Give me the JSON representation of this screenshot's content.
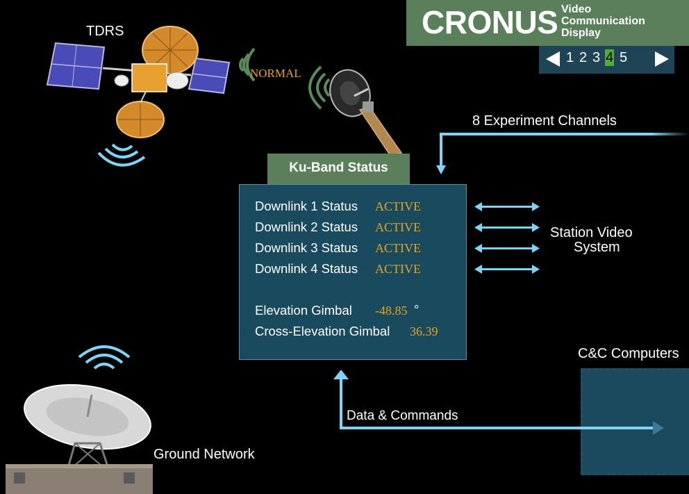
{
  "header": {
    "app_title": "CRONUS",
    "subtitle_line1": "Video",
    "subtitle_line2": "Communication",
    "subtitle_line3": "Display"
  },
  "pager": {
    "pages": [
      "1",
      "2",
      "3",
      "4",
      "5"
    ],
    "current_page": "4"
  },
  "diagram": {
    "tdrs_label": "TDRS",
    "link_status": "NORMAL",
    "experiment_channels_label": "8 Experiment Channels",
    "station_video_line1": "Station Video",
    "station_video_line2": "System",
    "cc_computers_label": "C&C Computers",
    "data_commands_label": "Data & Commands",
    "ground_network_label": "Ground Network"
  },
  "ku_band": {
    "title": "Ku-Band Status",
    "downlinks": [
      {
        "label": "Downlink 1 Status",
        "value": "ACTIVE"
      },
      {
        "label": "Downlink 2 Status",
        "value": "ACTIVE"
      },
      {
        "label": "Downlink 3 Status",
        "value": "ACTIVE"
      },
      {
        "label": "Downlink 4 Status",
        "value": "ACTIVE"
      }
    ],
    "elevation_label": "Elevation Gimbal",
    "elevation_value": "-48.85",
    "elevation_unit": "°",
    "cross_elevation_label": "Cross-Elevation Gimbal",
    "cross_elevation_value": "36.39"
  },
  "colors": {
    "header_green": "#5a7f5a",
    "panel_blue": "#1a4a5e",
    "status_amber": "#e8a321",
    "arrow_blue": "#7fd3f5",
    "current_page_green": "#4caf2e"
  }
}
